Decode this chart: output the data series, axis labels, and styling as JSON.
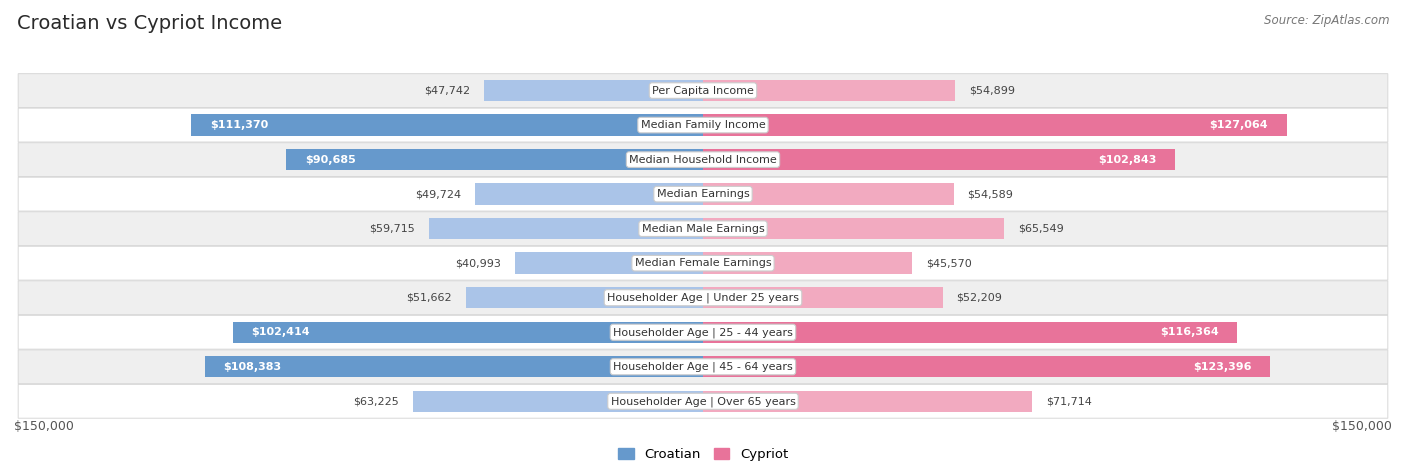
{
  "title": "Croatian vs Cypriot Income",
  "source": "Source: ZipAtlas.com",
  "categories": [
    "Per Capita Income",
    "Median Family Income",
    "Median Household Income",
    "Median Earnings",
    "Median Male Earnings",
    "Median Female Earnings",
    "Householder Age | Under 25 years",
    "Householder Age | 25 - 44 years",
    "Householder Age | 45 - 64 years",
    "Householder Age | Over 65 years"
  ],
  "croatian_values": [
    47742,
    111370,
    90685,
    49724,
    59715,
    40993,
    51662,
    102414,
    108383,
    63225
  ],
  "cypriot_values": [
    54899,
    127064,
    102843,
    54589,
    65549,
    45570,
    52209,
    116364,
    123396,
    71714
  ],
  "croatian_labels": [
    "$47,742",
    "$111,370",
    "$90,685",
    "$49,724",
    "$59,715",
    "$40,993",
    "$51,662",
    "$102,414",
    "$108,383",
    "$63,225"
  ],
  "cypriot_labels": [
    "$54,899",
    "$127,064",
    "$102,843",
    "$54,589",
    "$65,549",
    "$45,570",
    "$52,209",
    "$116,364",
    "$123,396",
    "$71,714"
  ],
  "croatian_color_light": "#aac4e8",
  "croatian_color_solid": "#6699cc",
  "cypriot_color_light": "#f2aac0",
  "cypriot_color_solid": "#e8739a",
  "inside_threshold": 80000,
  "max_value": 150000,
  "x_label_left": "$150,000",
  "x_label_right": "$150,000",
  "legend_croatian": "Croatian",
  "legend_cypriot": "Cypriot",
  "bg_color": "#ffffff",
  "row_bg_odd": "#efefef",
  "row_bg_even": "#ffffff",
  "row_border_color": "#d8d8d8"
}
